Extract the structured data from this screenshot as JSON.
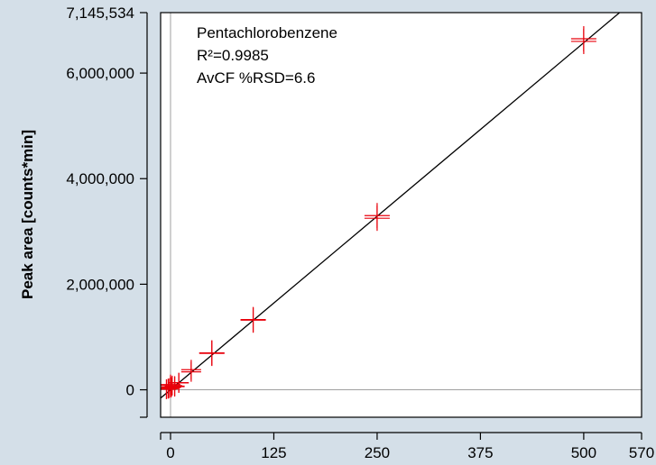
{
  "chart_data": {
    "type": "scatter",
    "title": "",
    "xlabel": "",
    "ylabel": "Peak area [counts*min]",
    "xlim": [
      -12,
      570
    ],
    "ylim": [
      -520000,
      7145534
    ],
    "x_ticks": [
      0,
      125,
      250,
      375,
      500,
      570
    ],
    "x_tick_labels": [
      "0",
      "125",
      "250",
      "375",
      "500",
      "570"
    ],
    "y_ticks": [
      0,
      2000000,
      4000000,
      6000000,
      7145534
    ],
    "y_tick_labels": [
      "0",
      "2,000,000",
      "4,000,000",
      "6,000,000",
      "7,145,534"
    ],
    "annotations": [
      "Pentachlorobenzene",
      "R²=0.9985",
      "AvCF %RSD=6.6"
    ],
    "marker_color": "#e8000b",
    "fit_line_color": "#000000",
    "reference_line_color": "#a0a0a0",
    "background_color": "#d4dfe8",
    "plot_background_color": "#ffffff",
    "fit_line": {
      "slope": 13150,
      "intercept": 0
    },
    "series": [
      {
        "points": [
          {
            "x": -5,
            "y": 10000
          },
          {
            "x": -3,
            "y": 20000
          },
          {
            "x": -2,
            "y": 30000
          },
          {
            "x": 0,
            "y": 40000
          },
          {
            "x": 0,
            "y": 80000
          },
          {
            "x": 0,
            "y": 100000
          },
          {
            "x": 1,
            "y": 50000
          },
          {
            "x": 2,
            "y": 80000
          },
          {
            "x": 5,
            "y": 70000
          },
          {
            "x": 5,
            "y": 60000
          },
          {
            "x": 10,
            "y": 130000
          },
          {
            "x": 10,
            "y": 135000
          },
          {
            "x": 25,
            "y": 340000
          },
          {
            "x": 25,
            "y": 380000
          },
          {
            "x": 50,
            "y": 700000
          },
          {
            "x": 50,
            "y": 690000
          },
          {
            "x": 100,
            "y": 1330000
          },
          {
            "x": 100,
            "y": 1320000
          },
          {
            "x": 250,
            "y": 3300000
          },
          {
            "x": 250,
            "y": 3250000
          },
          {
            "x": 500,
            "y": 6600000
          },
          {
            "x": 500,
            "y": 6650000
          }
        ]
      }
    ]
  }
}
